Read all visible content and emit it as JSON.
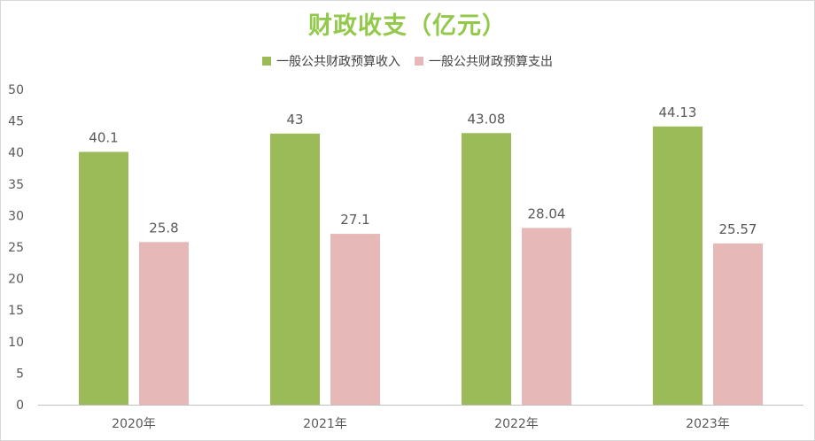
{
  "chart_data": {
    "type": "bar",
    "title": "财政收支（亿元）",
    "categories": [
      "2020年",
      "2021年",
      "2022年",
      "2023年"
    ],
    "series": [
      {
        "name": "一般公共财政预算收入",
        "values": [
          40.1,
          43,
          43.08,
          44.13
        ],
        "color": "#9bbb59",
        "labels": [
          "40.1",
          "43",
          "43.08",
          "44.13"
        ]
      },
      {
        "name": "一般公共财政预算支出",
        "values": [
          25.8,
          27.1,
          28.04,
          25.57
        ],
        "color": "#e6b9b8",
        "labels": [
          "25.8",
          "27.1",
          "28.04",
          "25.57"
        ]
      }
    ],
    "ylim": [
      0,
      50
    ],
    "yticks": [
      0,
      5,
      10,
      15,
      20,
      25,
      30,
      35,
      40,
      45,
      50
    ],
    "grid": false,
    "legend_position": "top",
    "xlabel": "",
    "ylabel": ""
  },
  "colors": {
    "title": "#92c94a",
    "axis_line": "#bfbfbf",
    "text": "#595959"
  }
}
